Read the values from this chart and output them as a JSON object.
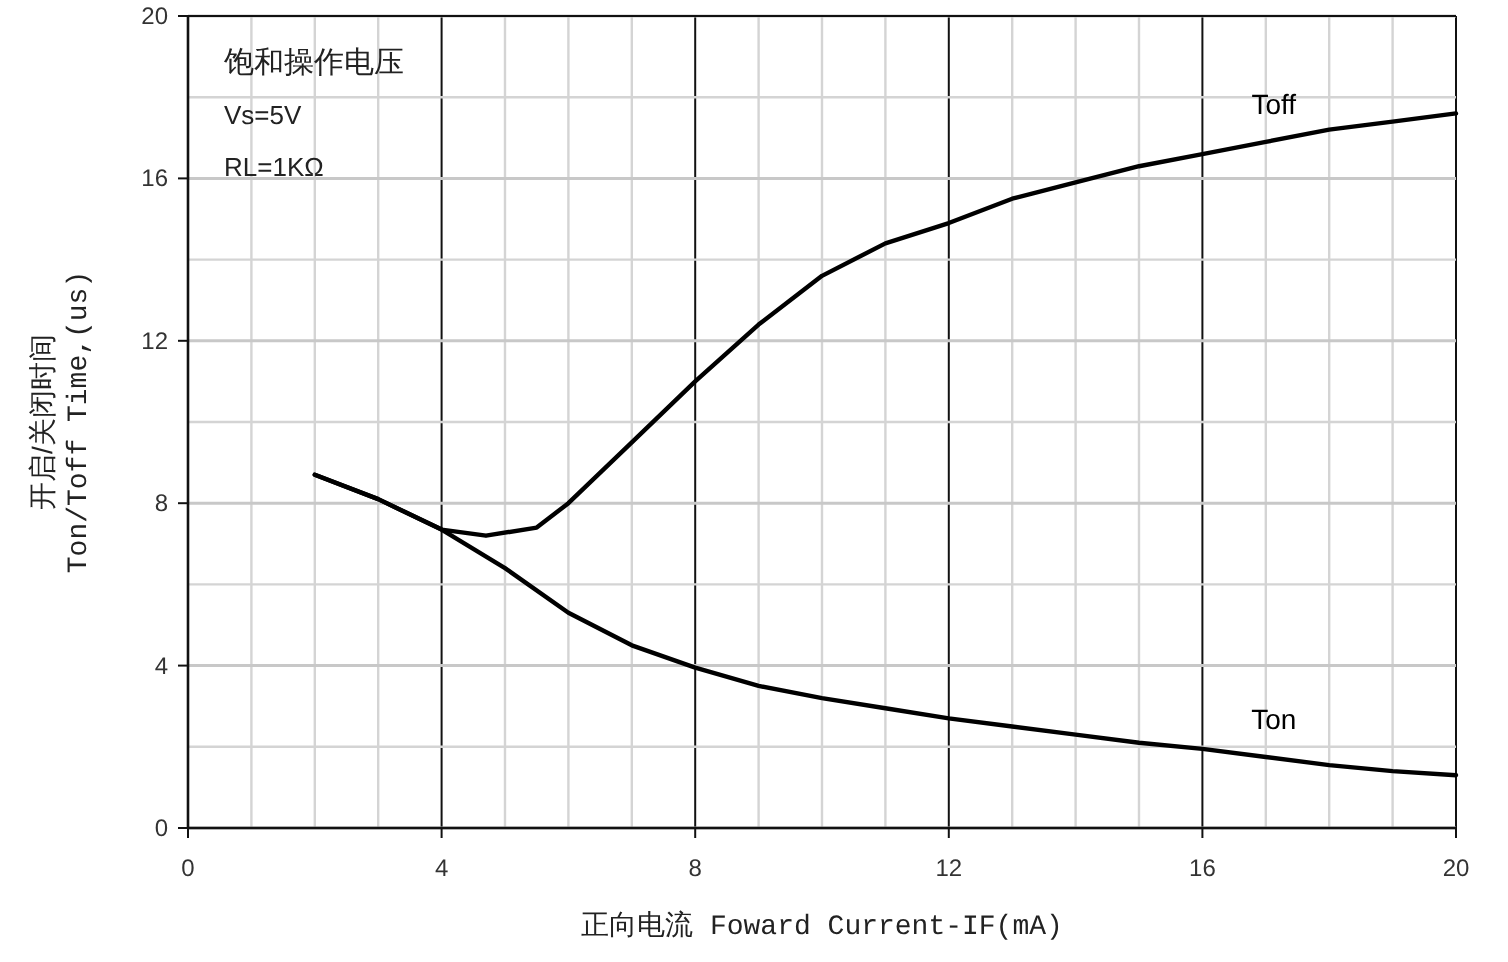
{
  "chart_data": {
    "type": "line",
    "xlabel": "正向电流 Foward Current-IF(mA)",
    "ylabel": "开启/关闭时间\nTon/Toff Time,(us)",
    "annotations": [
      "饱和操作电压",
      "Vs=5V",
      "RL=1KΩ"
    ],
    "xlim": [
      0,
      20
    ],
    "ylim": [
      0,
      20
    ],
    "xticks": [
      0,
      4,
      8,
      12,
      16,
      20
    ],
    "yticks": [
      0,
      4,
      8,
      12,
      16,
      20
    ],
    "grid": true,
    "line_style": "solid",
    "series": [
      {
        "name": "Toff",
        "color": "#000000",
        "x": [
          2,
          3,
          4,
          4.7,
          5.5,
          6,
          7,
          8,
          9,
          10,
          11,
          12,
          13,
          14,
          15,
          16,
          17,
          18,
          19,
          20
        ],
        "values": [
          8.7,
          8.1,
          7.35,
          7.2,
          7.4,
          8.0,
          9.5,
          11.0,
          12.4,
          13.6,
          14.4,
          14.9,
          15.5,
          15.9,
          16.3,
          16.6,
          16.9,
          17.2,
          17.4,
          17.6
        ]
      },
      {
        "name": "Ton",
        "color": "#000000",
        "x": [
          2,
          3,
          4,
          5,
          6,
          7,
          8,
          9,
          10,
          11,
          12,
          13,
          14,
          15,
          16,
          17,
          18,
          19,
          20
        ],
        "values": [
          8.7,
          8.1,
          7.35,
          6.4,
          5.3,
          4.5,
          3.95,
          3.5,
          3.2,
          2.95,
          2.7,
          2.5,
          2.3,
          2.1,
          1.95,
          1.75,
          1.55,
          1.4,
          1.3
        ]
      }
    ]
  }
}
